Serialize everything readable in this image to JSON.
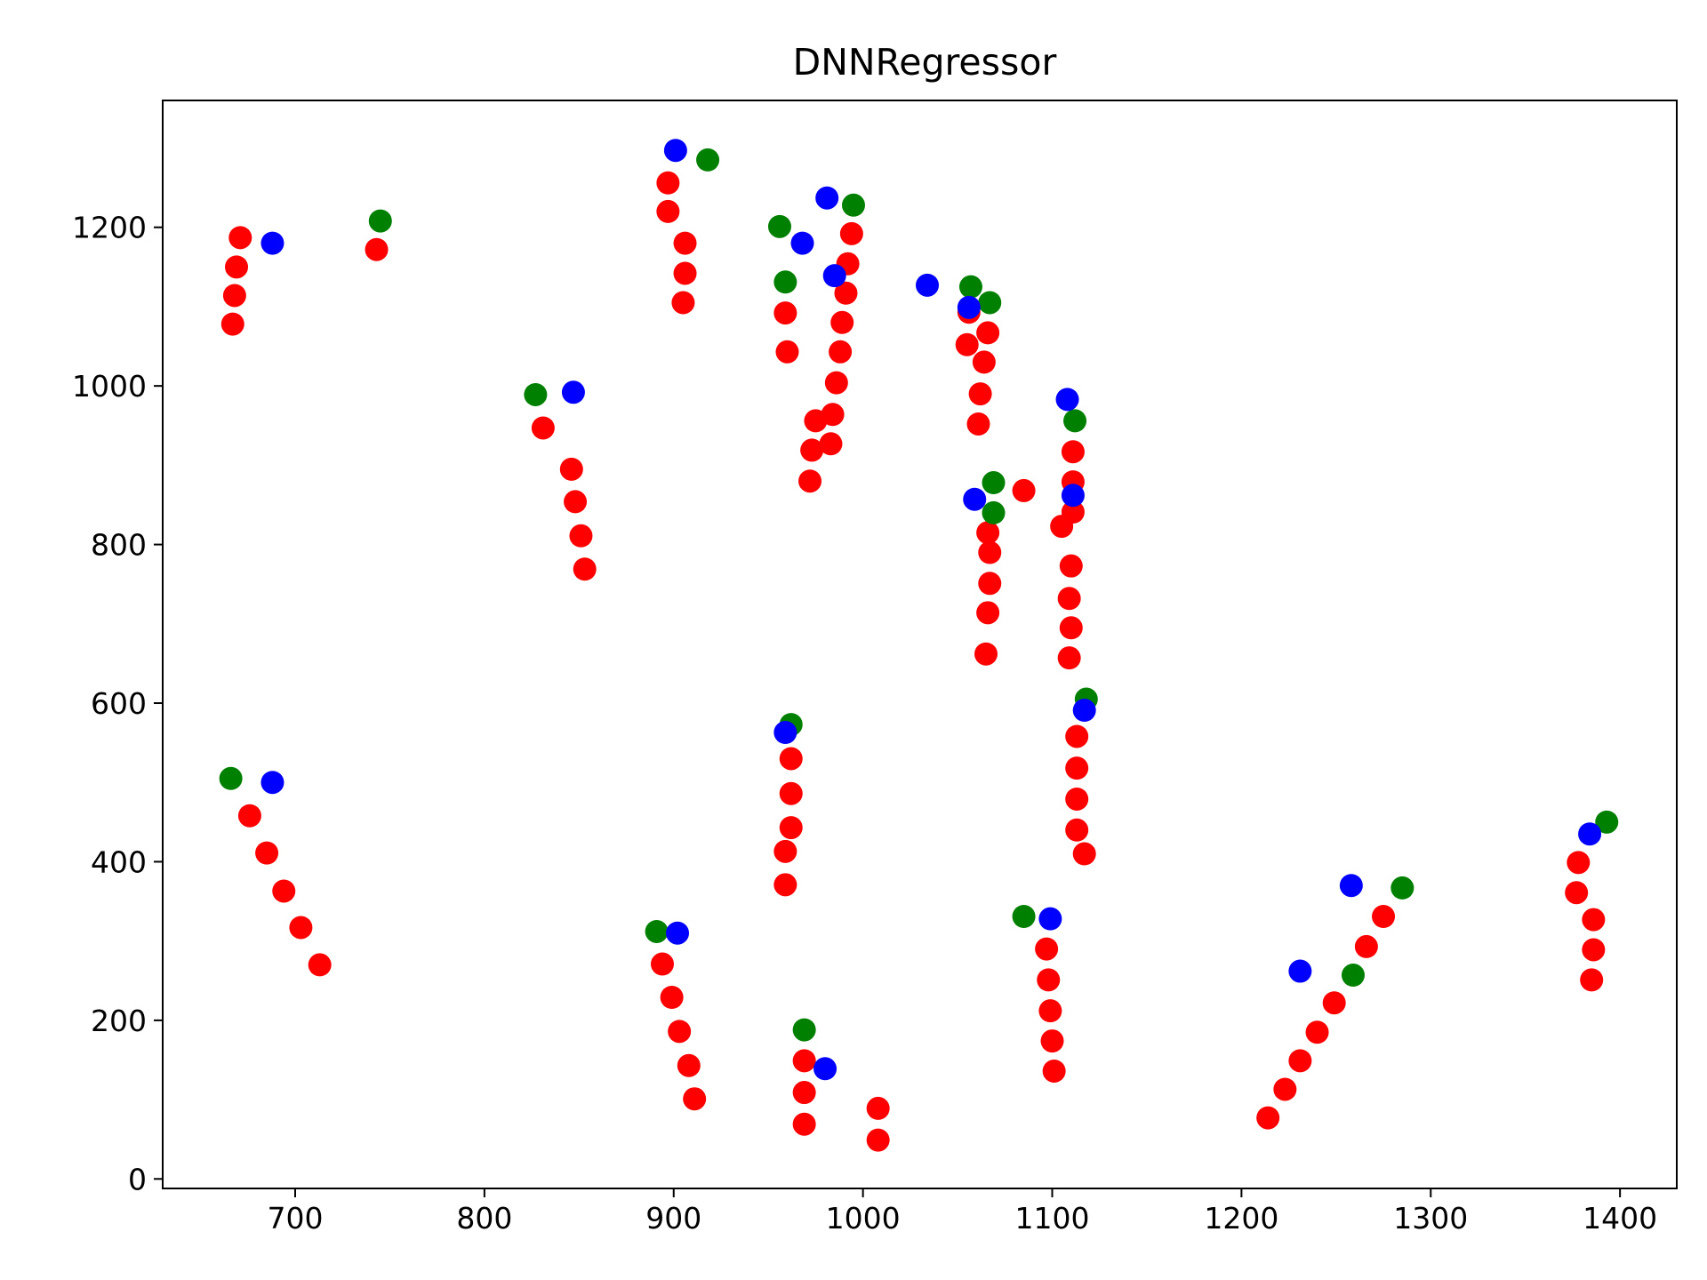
{
  "chart_data": {
    "type": "scatter",
    "title": "DNNRegressor",
    "xlabel": "",
    "ylabel": "",
    "xlim": [
      630,
      1430
    ],
    "ylim": [
      -12,
      1360
    ],
    "xticks": [
      700,
      800,
      900,
      1000,
      1100,
      1200,
      1300,
      1400
    ],
    "yticks": [
      0,
      200,
      400,
      600,
      800,
      1000,
      1200
    ],
    "grid": false,
    "legend": "none",
    "colors": {
      "red": "#ff0000",
      "green": "#008000",
      "blue": "#0000ff"
    },
    "series": [
      {
        "color": "#ff0000",
        "points": [
          [
            671,
            1187
          ],
          [
            669,
            1150
          ],
          [
            668,
            1114
          ],
          [
            667,
            1078
          ],
          [
            743,
            1172
          ],
          [
            831,
            947
          ],
          [
            846,
            895
          ],
          [
            848,
            854
          ],
          [
            851,
            811
          ],
          [
            853,
            769
          ],
          [
            897,
            1256
          ],
          [
            897,
            1220
          ],
          [
            906,
            1180
          ],
          [
            906,
            1142
          ],
          [
            905,
            1105
          ],
          [
            959,
            1092
          ],
          [
            960,
            1043
          ],
          [
            975,
            956
          ],
          [
            973,
            919
          ],
          [
            972,
            880
          ],
          [
            984,
            964
          ],
          [
            983,
            927
          ],
          [
            994,
            1192
          ],
          [
            992,
            1154
          ],
          [
            991,
            1117
          ],
          [
            989,
            1080
          ],
          [
            988,
            1043
          ],
          [
            986,
            1004
          ],
          [
            1056,
            1093
          ],
          [
            1055,
            1052
          ],
          [
            1066,
            1067
          ],
          [
            1064,
            1030
          ],
          [
            1062,
            990
          ],
          [
            1061,
            952
          ],
          [
            1085,
            868
          ],
          [
            1066,
            815
          ],
          [
            1067,
            790
          ],
          [
            1067,
            751
          ],
          [
            1066,
            714
          ],
          [
            1065,
            662
          ],
          [
            1111,
            917
          ],
          [
            1111,
            879
          ],
          [
            1111,
            841
          ],
          [
            1105,
            823
          ],
          [
            1110,
            773
          ],
          [
            1109,
            732
          ],
          [
            1110,
            695
          ],
          [
            1109,
            657
          ],
          [
            676,
            458
          ],
          [
            685,
            411
          ],
          [
            694,
            363
          ],
          [
            703,
            317
          ],
          [
            713,
            270
          ],
          [
            894,
            271
          ],
          [
            899,
            229
          ],
          [
            903,
            186
          ],
          [
            908,
            143
          ],
          [
            911,
            101
          ],
          [
            962,
            530
          ],
          [
            962,
            486
          ],
          [
            962,
            443
          ],
          [
            959,
            413
          ],
          [
            959,
            371
          ],
          [
            969,
            149
          ],
          [
            969,
            109
          ],
          [
            969,
            69
          ],
          [
            1008,
            89
          ],
          [
            1008,
            49
          ],
          [
            1113,
            558
          ],
          [
            1113,
            518
          ],
          [
            1113,
            479
          ],
          [
            1113,
            440
          ],
          [
            1117,
            410
          ],
          [
            1097,
            290
          ],
          [
            1098,
            251
          ],
          [
            1099,
            212
          ],
          [
            1100,
            174
          ],
          [
            1101,
            136
          ],
          [
            1214,
            77
          ],
          [
            1223,
            113
          ],
          [
            1231,
            149
          ],
          [
            1240,
            185
          ],
          [
            1249,
            222
          ],
          [
            1266,
            293
          ],
          [
            1275,
            331
          ],
          [
            1378,
            399
          ],
          [
            1377,
            361
          ],
          [
            1386,
            327
          ],
          [
            1386,
            289
          ],
          [
            1385,
            251
          ]
        ]
      },
      {
        "color": "#008000",
        "points": [
          [
            745,
            1208
          ],
          [
            918,
            1285
          ],
          [
            956,
            1201
          ],
          [
            959,
            1131
          ],
          [
            995,
            1228
          ],
          [
            827,
            989
          ],
          [
            1057,
            1125
          ],
          [
            1067,
            1105
          ],
          [
            1112,
            956
          ],
          [
            1069,
            878
          ],
          [
            1069,
            840
          ],
          [
            666,
            505
          ],
          [
            962,
            573
          ],
          [
            1118,
            605
          ],
          [
            891,
            312
          ],
          [
            969,
            188
          ],
          [
            1085,
            331
          ],
          [
            1259,
            257
          ],
          [
            1285,
            367
          ],
          [
            1393,
            450
          ]
        ]
      },
      {
        "color": "#0000ff",
        "points": [
          [
            688,
            1180
          ],
          [
            901,
            1297
          ],
          [
            981,
            1237
          ],
          [
            968,
            1180
          ],
          [
            985,
            1139
          ],
          [
            847,
            992
          ],
          [
            1034,
            1127
          ],
          [
            1056,
            1099
          ],
          [
            1108,
            983
          ],
          [
            1059,
            857
          ],
          [
            1111,
            862
          ],
          [
            688,
            500
          ],
          [
            959,
            563
          ],
          [
            1117,
            591
          ],
          [
            902,
            310
          ],
          [
            980,
            139
          ],
          [
            1099,
            328
          ],
          [
            1231,
            262
          ],
          [
            1258,
            370
          ],
          [
            1384,
            435
          ]
        ]
      }
    ]
  }
}
